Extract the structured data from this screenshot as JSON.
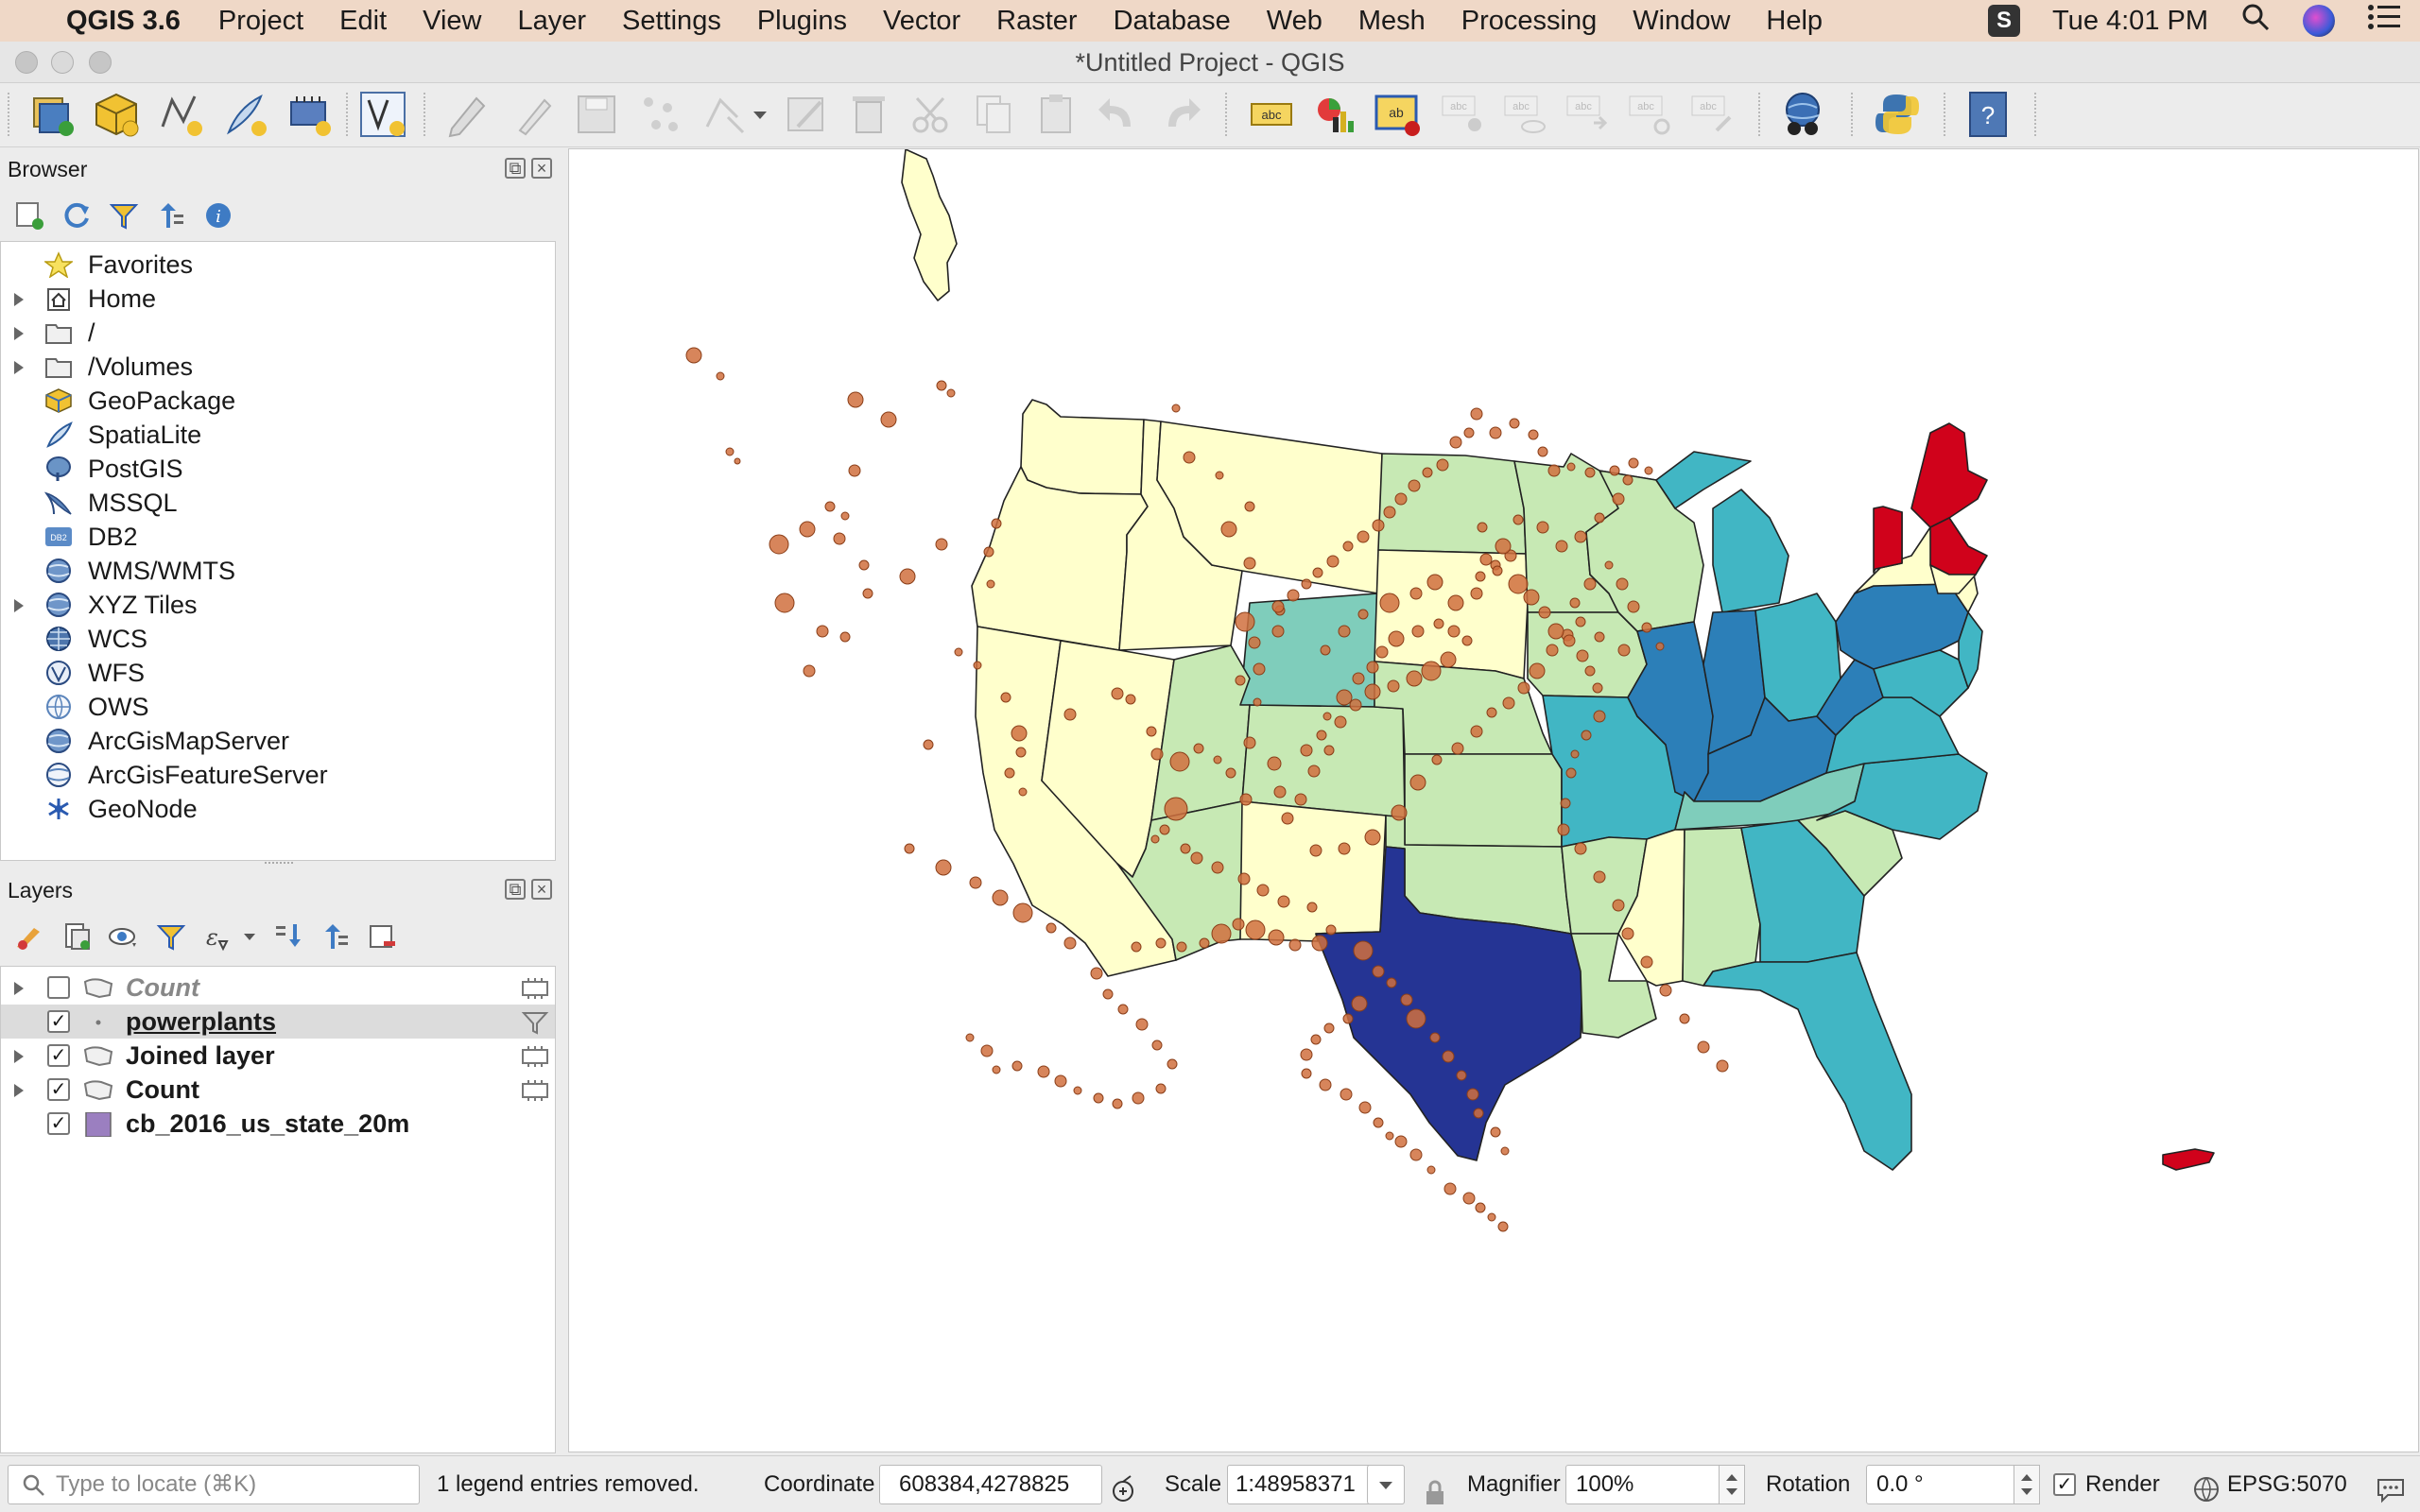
{
  "menubar": {
    "app_name": "QGIS 3.6",
    "items": [
      "Project",
      "Edit",
      "View",
      "Layer",
      "Settings",
      "Plugins",
      "Vector",
      "Raster",
      "Database",
      "Web",
      "Mesh",
      "Processing",
      "Window",
      "Help"
    ],
    "clock": "Tue 4:01 PM"
  },
  "window": {
    "title": "*Untitled Project - QGIS"
  },
  "browser": {
    "title": "Browser",
    "items": [
      {
        "label": "Favorites",
        "icon": "star-icon",
        "expandable": false
      },
      {
        "label": "Home",
        "icon": "home-icon",
        "expandable": true
      },
      {
        "label": "/",
        "icon": "folder-icon",
        "expandable": true
      },
      {
        "label": "/Volumes",
        "icon": "folder-icon",
        "expandable": true
      },
      {
        "label": "GeoPackage",
        "icon": "geopackage-icon",
        "expandable": false
      },
      {
        "label": "SpatiaLite",
        "icon": "feather-icon",
        "expandable": false
      },
      {
        "label": "PostGIS",
        "icon": "elephant-icon",
        "expandable": false
      },
      {
        "label": "MSSQL",
        "icon": "mssql-icon",
        "expandable": false
      },
      {
        "label": "DB2",
        "icon": "db2-icon",
        "expandable": false
      },
      {
        "label": "WMS/WMTS",
        "icon": "globe-icon",
        "expandable": false
      },
      {
        "label": "XYZ Tiles",
        "icon": "globe-icon",
        "expandable": true
      },
      {
        "label": "WCS",
        "icon": "globe-grid-icon",
        "expandable": false
      },
      {
        "label": "WFS",
        "icon": "globe-v-icon",
        "expandable": false
      },
      {
        "label": "OWS",
        "icon": "globe-outline-icon",
        "expandable": false
      },
      {
        "label": "ArcGisMapServer",
        "icon": "arcgis-icon",
        "expandable": false
      },
      {
        "label": "ArcGisFeatureServer",
        "icon": "arcgis-icon",
        "expandable": false
      },
      {
        "label": "GeoNode",
        "icon": "geonode-icon",
        "expandable": false
      }
    ]
  },
  "layers": {
    "title": "Layers",
    "items": [
      {
        "label": "Count",
        "checked": false,
        "italic": true,
        "icon": "polygon-icon"
      },
      {
        "label": "powerplants",
        "checked": true,
        "underline": true,
        "icon": "point-icon"
      },
      {
        "label": "Joined layer",
        "checked": true,
        "icon": "polygon-icon"
      },
      {
        "label": "Count",
        "checked": true,
        "icon": "polygon-icon"
      },
      {
        "label": "cb_2016_us_state_20m",
        "checked": true,
        "icon": "fill-swatch-icon",
        "swatch": "#9b7fc0"
      }
    ]
  },
  "status": {
    "locate_placeholder": "Type to locate (⌘K)",
    "message": "1 legend entries removed.",
    "coordinate_label": "Coordinate",
    "coordinate_value": "608384,4278825",
    "scale_label": "Scale",
    "scale_value": "1:48958371",
    "magnifier_label": "Magnifier",
    "magnifier_value": "100%",
    "rotation_label": "Rotation",
    "rotation_value": "0.0 °",
    "render_label": "Render",
    "crs": "EPSG:5070"
  },
  "map": {
    "colors": {
      "class1": "#ffffcc",
      "class2": "#c7e9b4",
      "class3": "#7fcdbb",
      "class4": "#41b6c4",
      "class5": "#2c7fb8",
      "class6": "#253494",
      "red": "#d0021b",
      "points": "#d0703e"
    }
  }
}
